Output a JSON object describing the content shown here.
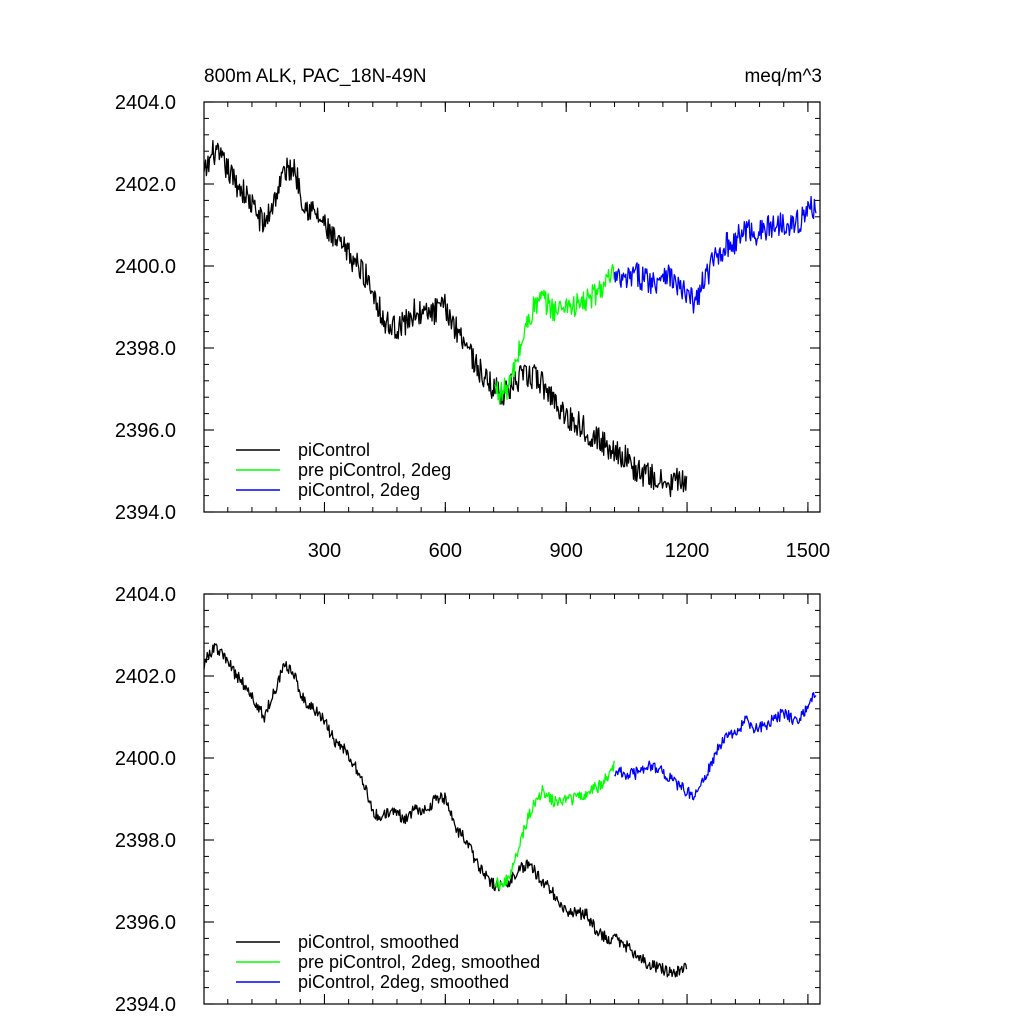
{
  "chart_data": [
    {
      "type": "line",
      "title_left": "800m ALK, PAC_18N-49N",
      "title_right": "meq/m^3",
      "xlim": [
        1,
        1530
      ],
      "ylim": [
        2394.0,
        2404.0
      ],
      "x_ticks": [
        300,
        600,
        900,
        1200,
        1500
      ],
      "x_tick_labels": [
        "300",
        "600",
        "900",
        "1200",
        "1500"
      ],
      "y_ticks": [
        2394.0,
        2396.0,
        2398.0,
        2400.0,
        2402.0,
        2404.0
      ],
      "y_tick_labels": [
        "2394.0",
        "2396.0",
        "2398.0",
        "2400.0",
        "2402.0",
        "2404.0"
      ],
      "legend_position": "bottom-left",
      "series": [
        {
          "name": "piControl",
          "color": "#000000",
          "x": [
            1,
            25,
            50,
            75,
            100,
            125,
            150,
            175,
            200,
            225,
            250,
            275,
            300,
            325,
            350,
            375,
            400,
            425,
            450,
            475,
            500,
            525,
            550,
            575,
            600,
            625,
            650,
            675,
            700,
            725,
            750,
            775,
            800,
            825,
            850,
            875,
            900,
            925,
            950,
            975,
            1000,
            1025,
            1050,
            1075,
            1100,
            1125,
            1150,
            1175,
            1200
          ],
          "y": [
            2402.2,
            2402.8,
            2402.5,
            2402.1,
            2401.8,
            2401.4,
            2401.0,
            2401.6,
            2402.3,
            2402.4,
            2401.5,
            2401.3,
            2401.0,
            2400.6,
            2400.4,
            2400.1,
            2399.8,
            2399.3,
            2398.6,
            2398.5,
            2398.6,
            2398.9,
            2398.8,
            2398.9,
            2399.0,
            2398.5,
            2398.2,
            2397.6,
            2397.2,
            2397.0,
            2396.9,
            2397.2,
            2397.3,
            2397.3,
            2397.0,
            2396.7,
            2396.3,
            2396.2,
            2396.0,
            2395.8,
            2395.6,
            2395.5,
            2395.3,
            2395.0,
            2394.9,
            2394.8,
            2394.6,
            2394.8,
            2394.6
          ],
          "noise": 0.32
        },
        {
          "name": "pre piControl, 2deg",
          "color": "#00ff00",
          "x": [
            723,
            740,
            760,
            780,
            800,
            820,
            840,
            860,
            880,
            900,
            920,
            940,
            960,
            980,
            1000,
            1020
          ],
          "y": [
            2397.0,
            2396.9,
            2397.1,
            2397.8,
            2398.5,
            2399.0,
            2399.2,
            2399.0,
            2398.9,
            2399.1,
            2399.0,
            2399.1,
            2399.2,
            2399.4,
            2399.6,
            2399.8
          ],
          "noise": 0.3
        },
        {
          "name": "piControl, 2deg",
          "color": "#0000ff",
          "x": [
            1020,
            1045,
            1070,
            1095,
            1120,
            1145,
            1170,
            1195,
            1220,
            1245,
            1270,
            1295,
            1320,
            1345,
            1370,
            1395,
            1420,
            1445,
            1470,
            1495,
            1520
          ],
          "y": [
            2399.7,
            2399.6,
            2399.8,
            2399.7,
            2399.6,
            2399.9,
            2399.6,
            2399.3,
            2399.1,
            2399.7,
            2400.2,
            2400.5,
            2400.6,
            2400.9,
            2400.8,
            2400.9,
            2401.0,
            2401.1,
            2401.0,
            2401.3,
            2401.5
          ],
          "noise": 0.32
        }
      ]
    },
    {
      "type": "line",
      "xlim": [
        1,
        1530
      ],
      "ylim": [
        2394.0,
        2404.0
      ],
      "x_ticks": [
        300,
        600,
        900,
        1200,
        1500
      ],
      "y_ticks": [
        2394.0,
        2396.0,
        2398.0,
        2400.0,
        2402.0,
        2404.0
      ],
      "y_tick_labels": [
        "2394.0",
        "2396.0",
        "2398.0",
        "2400.0",
        "2402.0",
        "2404.0"
      ],
      "legend_position": "bottom-left",
      "series": [
        {
          "name": "piControl, smoothed",
          "color": "#000000",
          "x": [
            1,
            25,
            50,
            75,
            100,
            125,
            150,
            175,
            200,
            225,
            250,
            275,
            300,
            325,
            350,
            375,
            400,
            425,
            450,
            475,
            500,
            525,
            550,
            575,
            600,
            625,
            650,
            675,
            700,
            725,
            750,
            775,
            800,
            825,
            850,
            875,
            900,
            925,
            950,
            975,
            1000,
            1025,
            1050,
            1075,
            1100,
            1125,
            1150,
            1175,
            1200
          ],
          "y": [
            2402.3,
            2402.7,
            2402.5,
            2402.1,
            2401.8,
            2401.4,
            2401.0,
            2401.6,
            2402.3,
            2402.0,
            2401.4,
            2401.2,
            2400.9,
            2400.4,
            2400.2,
            2399.8,
            2399.3,
            2398.6,
            2398.6,
            2398.7,
            2398.5,
            2398.8,
            2398.7,
            2399.0,
            2399.0,
            2398.3,
            2398.0,
            2397.5,
            2397.1,
            2396.9,
            2396.9,
            2397.2,
            2397.4,
            2397.2,
            2396.9,
            2396.6,
            2396.3,
            2396.2,
            2396.2,
            2395.8,
            2395.6,
            2395.6,
            2395.4,
            2395.2,
            2395.0,
            2394.9,
            2394.8,
            2394.8,
            2394.9
          ],
          "noise": 0.15
        },
        {
          "name": "pre piControl, 2deg, smoothed",
          "color": "#00ff00",
          "x": [
            723,
            740,
            760,
            780,
            800,
            820,
            840,
            860,
            880,
            900,
            920,
            940,
            960,
            980,
            1000,
            1020
          ],
          "y": [
            2397.0,
            2396.9,
            2397.1,
            2397.7,
            2398.4,
            2398.9,
            2399.2,
            2399.0,
            2398.9,
            2399.0,
            2399.0,
            2399.1,
            2399.2,
            2399.3,
            2399.5,
            2399.8
          ],
          "noise": 0.15
        },
        {
          "name": "piControl, 2deg, smoothed",
          "color": "#0000ff",
          "x": [
            1020,
            1045,
            1070,
            1095,
            1120,
            1145,
            1170,
            1195,
            1220,
            1245,
            1270,
            1295,
            1320,
            1345,
            1370,
            1395,
            1420,
            1445,
            1470,
            1495,
            1520
          ],
          "y": [
            2399.7,
            2399.6,
            2399.6,
            2399.8,
            2399.8,
            2399.6,
            2399.4,
            2399.2,
            2399.1,
            2399.5,
            2400.1,
            2400.5,
            2400.6,
            2400.9,
            2400.7,
            2400.8,
            2401.0,
            2401.1,
            2400.9,
            2401.2,
            2401.6
          ],
          "noise": 0.15
        }
      ]
    }
  ]
}
